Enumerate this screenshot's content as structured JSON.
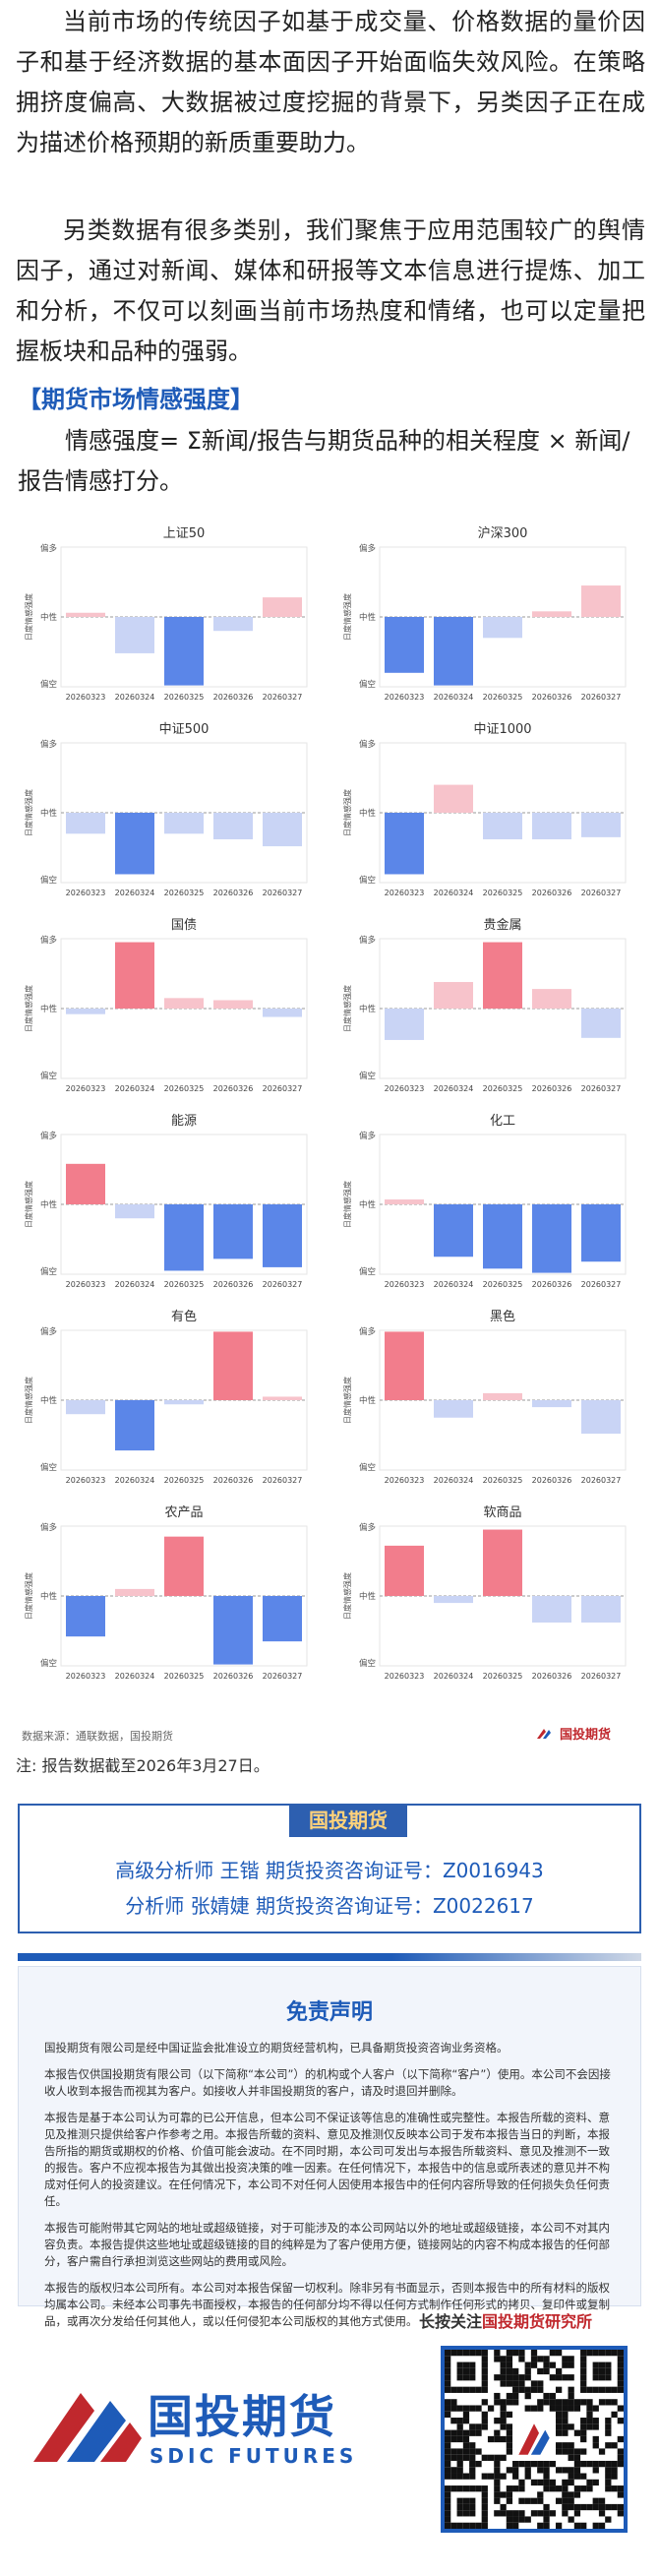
{
  "intro": {
    "p1": "当前市场的传统因子如基于成交量、价格数据的量价因子和基于经济数据的基本面因子开始面临失效风险。在策略拥挤度偏高、大数据被过度挖掘的背景下，另类因子正在成为描述价格预期的新质重要助力。",
    "p2": "另类数据有很多类别，我们聚焦于应用范围较广的舆情因子，通过对新闻、媒体和研报等文本信息进行提炼、加工和分析，不仅可以刻画当前市场热度和情绪，也可以定量把握板块和品种的强弱。"
  },
  "section_title": "【期货市场情感强度】",
  "formula": "情感强度= Σ新闻/报告与期货品种的相关程度 × 新闻/报告情感打分。",
  "colors": {
    "pos_strong": "#f27d8c",
    "pos_light": "#f7c3cb",
    "neg_strong": "#5b86e8",
    "neg_light": "#c9d4f5",
    "axis_dash": "#999999"
  },
  "chart_data": [
    {
      "type": "bar",
      "title": "上证50",
      "ylabel": "日度情感强度",
      "y_top": "偏多",
      "y_mid": "中性",
      "y_bot": "偏空",
      "categories": [
        "20260323",
        "20260324",
        "20260325",
        "20260326",
        "20260327"
      ],
      "values": [
        0.06,
        -0.52,
        -0.98,
        -0.2,
        0.28
      ],
      "ylim": [
        -1,
        1
      ]
    },
    {
      "type": "bar",
      "title": "沪深300",
      "ylabel": "日度情感强度",
      "y_top": "偏多",
      "y_mid": "中性",
      "y_bot": "偏空",
      "categories": [
        "20260323",
        "20260324",
        "20260325",
        "20260326",
        "20260327"
      ],
      "values": [
        -0.8,
        -0.98,
        -0.3,
        0.08,
        0.45
      ],
      "ylim": [
        -1,
        1
      ]
    },
    {
      "type": "bar",
      "title": "中证500",
      "ylabel": "日度情感强度",
      "y_top": "偏多",
      "y_mid": "中性",
      "y_bot": "偏空",
      "categories": [
        "20260323",
        "20260324",
        "20260325",
        "20260326",
        "20260327"
      ],
      "values": [
        -0.3,
        -0.88,
        -0.3,
        -0.38,
        -0.48
      ],
      "ylim": [
        -1,
        1
      ]
    },
    {
      "type": "bar",
      "title": "中证1000",
      "ylabel": "日度情感强度",
      "y_top": "偏多",
      "y_mid": "中性",
      "y_bot": "偏空",
      "categories": [
        "20260323",
        "20260324",
        "20260325",
        "20260326",
        "20260327"
      ],
      "values": [
        -0.88,
        0.4,
        -0.38,
        -0.38,
        -0.35
      ],
      "ylim": [
        -1,
        1
      ]
    },
    {
      "type": "bar",
      "title": "国债",
      "ylabel": "日度情感强度",
      "y_top": "偏多",
      "y_mid": "中性",
      "y_bot": "偏空",
      "categories": [
        "20260323",
        "20260324",
        "20260325",
        "20260326",
        "20260327"
      ],
      "values": [
        -0.08,
        0.95,
        0.15,
        0.12,
        -0.12
      ],
      "ylim": [
        -1,
        1
      ]
    },
    {
      "type": "bar",
      "title": "贵金属",
      "ylabel": "日度情感强度",
      "y_top": "偏多",
      "y_mid": "中性",
      "y_bot": "偏空",
      "categories": [
        "20260323",
        "20260324",
        "20260325",
        "20260326",
        "20260327"
      ],
      "values": [
        -0.45,
        0.38,
        0.95,
        0.28,
        -0.42
      ],
      "ylim": [
        -1,
        1
      ]
    },
    {
      "type": "bar",
      "title": "能源",
      "ylabel": "日度情感强度",
      "y_top": "偏多",
      "y_mid": "中性",
      "y_bot": "偏空",
      "categories": [
        "20260323",
        "20260324",
        "20260325",
        "20260326",
        "20260327"
      ],
      "values": [
        0.58,
        -0.2,
        -0.95,
        -0.78,
        -0.9
      ],
      "ylim": [
        -1,
        1
      ]
    },
    {
      "type": "bar",
      "title": "化工",
      "ylabel": "日度情感强度",
      "y_top": "偏多",
      "y_mid": "中性",
      "y_bot": "偏空",
      "categories": [
        "20260323",
        "20260324",
        "20260325",
        "20260326",
        "20260327"
      ],
      "values": [
        0.07,
        -0.75,
        -0.92,
        -0.98,
        -0.82
      ],
      "ylim": [
        -1,
        1
      ]
    },
    {
      "type": "bar",
      "title": "有色",
      "ylabel": "日度情感强度",
      "y_top": "偏多",
      "y_mid": "中性",
      "y_bot": "偏空",
      "categories": [
        "20260323",
        "20260324",
        "20260325",
        "20260326",
        "20260327"
      ],
      "values": [
        -0.2,
        -0.72,
        -0.06,
        0.98,
        0.05
      ],
      "ylim": [
        -1,
        1
      ]
    },
    {
      "type": "bar",
      "title": "黑色",
      "ylabel": "日度情感强度",
      "y_top": "偏多",
      "y_mid": "中性",
      "y_bot": "偏空",
      "categories": [
        "20260323",
        "20260324",
        "20260325",
        "20260326",
        "20260327"
      ],
      "values": [
        0.98,
        -0.25,
        0.1,
        -0.1,
        -0.48
      ],
      "ylim": [
        -1,
        1
      ]
    },
    {
      "type": "bar",
      "title": "农产品",
      "ylabel": "日度情感强度",
      "y_top": "偏多",
      "y_mid": "中性",
      "y_bot": "偏空",
      "categories": [
        "20260323",
        "20260324",
        "20260325",
        "20260326",
        "20260327"
      ],
      "values": [
        -0.58,
        0.1,
        0.85,
        -0.98,
        -0.65
      ],
      "ylim": [
        -1,
        1
      ]
    },
    {
      "type": "bar",
      "title": "软商品",
      "ylabel": "日度情感强度",
      "y_top": "偏多",
      "y_mid": "中性",
      "y_bot": "偏空",
      "categories": [
        "20260323",
        "20260324",
        "20260325",
        "20260326",
        "20260327"
      ],
      "values": [
        0.72,
        -0.1,
        0.95,
        -0.38,
        -0.38
      ],
      "ylim": [
        -1,
        1
      ]
    }
  ],
  "source": "数据来源：通联数据，国投期货",
  "brand_small": "国投期货",
  "note": "注: 报告数据截至2026年3月27日。",
  "analysts": {
    "tag": "国投期货",
    "line1": "高级分析师 王锴 期货投资咨询证号：Z0016943",
    "line2": "分析师 张婧婕 期货投资咨询证号：Z0022617"
  },
  "disclaimer": {
    "title": "免责声明",
    "p1": "国投期货有限公司是经中国证监会批准设立的期货经营机构，已具备期货投资咨询业务资格。",
    "p2": "本报告仅供国投期货有限公司（以下简称“本公司”）的机构或个人客户（以下简称“客户”）使用。本公司不会因接收人收到本报告而视其为客户。如接收人并非国投期货的客户，请及时退回并删除。",
    "p3": "本报告是基于本公司认为可靠的已公开信息，但本公司不保证该等信息的准确性或完整性。本报告所载的资料、意见及推测只提供给客户作参考之用。本报告所载的资料、意见及推测仅反映本公司于发布本报告当日的判断，本报告所指的期货或期权的价格、价值可能会波动。在不同时期，本公司可发出与本报告所载资料、意见及推测不一致的报告。客户不应视本报告为其做出投资决策的唯一因素。在任何情况下，本报告中的信息或所表述的意见并不构成对任何人的投资建议。在任何情况下，本公司不对任何人因使用本报告中的任何内容所导致的任何损失负任何责任。",
    "p4": "本报告可能附带其它网站的地址或超级链接，对于可能涉及的本公司网站以外的地址或超级链接，本公司不对其内容负责。本报告提供这些地址或超级链接的目的纯粹是为了客户使用方便，链接网站的内容不构成本报告的任何部分，客户需自行承担浏览这些网站的费用或风险。",
    "p5": "本报告的版权归本公司所有。本公司对本报告保留一切权利。除非另有书面显示，否则本报告中的所有材料的版权均属本公司。未经本公司事先书面授权，本报告的任何部分均不得以任何方式制作任何形式的拷贝、复印件或复制品，或再次分发给任何其他人，或以任何侵犯本公司版权的其他方式使用。"
  },
  "footer": {
    "logo_cn": "国投期货",
    "logo_en": "SDIC FUTURES",
    "qr_prefix": "长按关注",
    "qr_highlight": "国投期货研究所"
  }
}
